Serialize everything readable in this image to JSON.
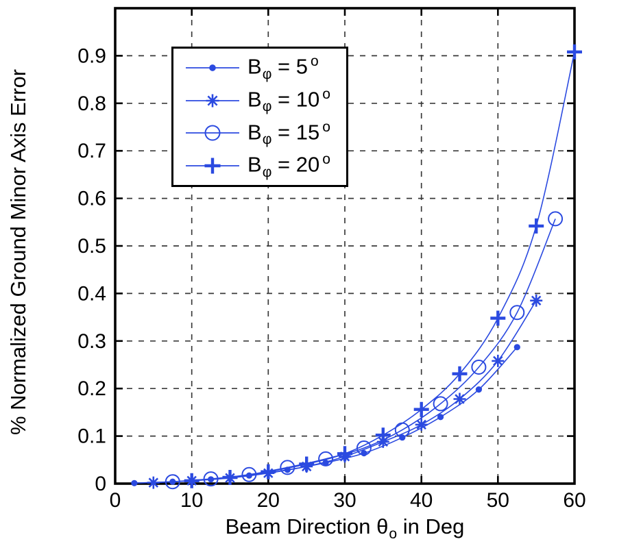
{
  "figure": {
    "background": "#ffffff"
  },
  "colors": {
    "series_blue": "#2b4ae0",
    "axis_black": "#000000",
    "grid_gray": "#3a3a3a",
    "text_black": "#000000"
  },
  "chart_data": {
    "type": "line",
    "title": "",
    "xlabel_parts": {
      "prefix": "Beam Direction ",
      "symbol": "θ",
      "subscript": "o",
      "suffix": " in Deg"
    },
    "ylabel": "% Normalized Ground Minor Axis Error",
    "xlim": [
      0,
      60
    ],
    "ylim": [
      0,
      1.0
    ],
    "xticks": [
      0,
      10,
      20,
      30,
      40,
      50,
      60
    ],
    "yticks": [
      0,
      0.1,
      0.2,
      0.3,
      0.4,
      0.5,
      0.6,
      0.7,
      0.8,
      0.9
    ],
    "grid": "dashed",
    "legend_position": "upper-left",
    "series": [
      {
        "name": "B_phi = 5 deg",
        "marker": "dot",
        "color": "#2b4ae0",
        "legend_label": {
          "base": "B",
          "sub": "φ",
          "eq": " = ",
          "value": "5",
          "deg": "o"
        },
        "x": [
          2.5,
          7.5,
          12.5,
          17.5,
          22.5,
          27.5,
          32.5,
          37.5,
          42.5,
          47.5,
          52.5
        ],
        "y": [
          0.001,
          0.004,
          0.009,
          0.017,
          0.029,
          0.044,
          0.064,
          0.097,
          0.14,
          0.198,
          0.287
        ]
      },
      {
        "name": "B_phi = 10 deg",
        "marker": "asterisk",
        "color": "#2b4ae0",
        "legend_label": {
          "base": "B",
          "sub": "φ",
          "eq": " = ",
          "value": "10",
          "deg": "o"
        },
        "x": [
          5,
          10,
          15,
          20,
          25,
          30,
          35,
          40,
          45,
          50,
          55
        ],
        "y": [
          0.002,
          0.006,
          0.012,
          0.022,
          0.036,
          0.057,
          0.088,
          0.124,
          0.178,
          0.258,
          0.385
        ]
      },
      {
        "name": "B_phi = 15 deg",
        "marker": "circle",
        "color": "#2b4ae0",
        "legend_label": {
          "base": "B",
          "sub": "φ",
          "eq": " = ",
          "value": "15",
          "deg": "o"
        },
        "x": [
          7.5,
          12.5,
          17.5,
          22.5,
          27.5,
          32.5,
          37.5,
          42.5,
          47.5,
          52.5,
          57.5
        ],
        "y": [
          0.004,
          0.01,
          0.019,
          0.034,
          0.052,
          0.075,
          0.113,
          0.168,
          0.245,
          0.36,
          0.557
        ]
      },
      {
        "name": "B_phi = 20 deg",
        "marker": "plus",
        "color": "#2b4ae0",
        "legend_label": {
          "base": "B",
          "sub": "φ",
          "eq": " = ",
          "value": "20",
          "deg": "o"
        },
        "x": [
          10,
          15,
          20,
          25,
          30,
          35,
          40,
          45,
          50,
          55,
          60
        ],
        "y": [
          0.006,
          0.013,
          0.025,
          0.041,
          0.063,
          0.102,
          0.156,
          0.231,
          0.348,
          0.542,
          0.908
        ]
      }
    ]
  }
}
